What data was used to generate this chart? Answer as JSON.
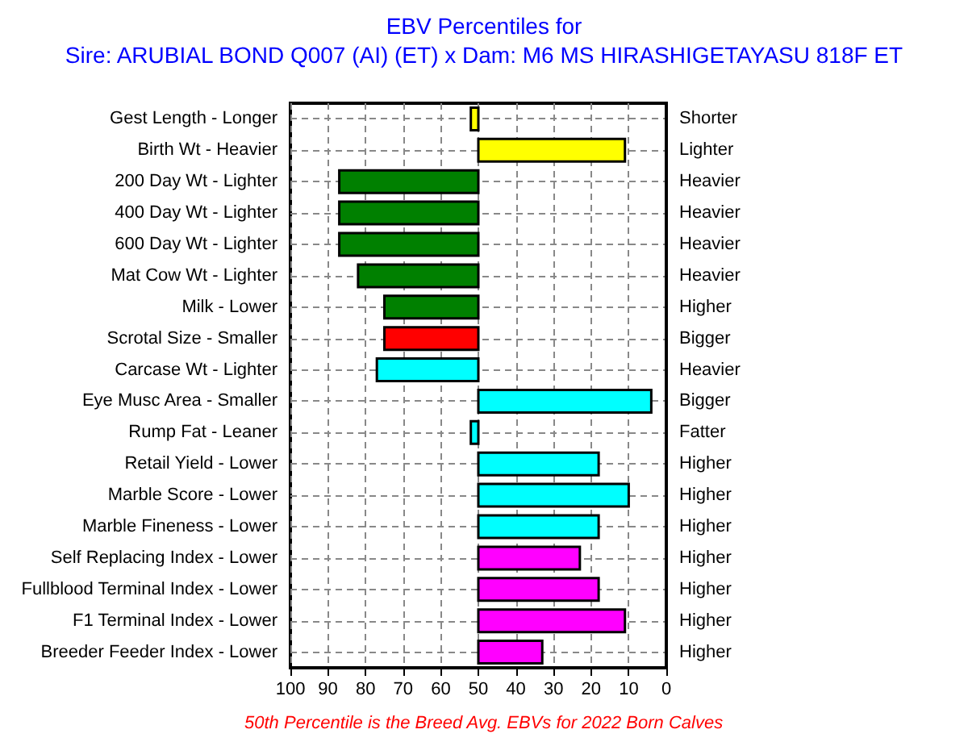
{
  "chart_data": {
    "type": "bar",
    "orientation": "horizontal",
    "title": "EBV Percentiles for",
    "subtitle": "Sire: ARUBIAL BOND Q007 (AI) (ET) x Dam: M6 MS HIRASHIGETAYASU 818F ET",
    "categories": [
      "Gest Length - Longer",
      "Birth Wt - Heavier",
      "200 Day Wt - Lighter",
      "400 Day Wt - Lighter",
      "600 Day Wt - Lighter",
      "Mat Cow Wt - Lighter",
      "Milk - Lower",
      "Scrotal Size - Smaller",
      "Carcase Wt - Lighter",
      "Eye Musc Area - Smaller",
      "Rump Fat - Leaner",
      "Retail Yield - Lower",
      "Marble Score - Lower",
      "Marble Fineness - Lower",
      "Self Replacing Index - Lower",
      "Fullblood Terminal Index - Lower",
      "F1 Terminal Index - Lower",
      "Breeder Feeder Index - Lower"
    ],
    "y2_categories": [
      "Shorter",
      "Lighter",
      "Heavier",
      "Heavier",
      "Heavier",
      "Heavier",
      "Higher",
      "Bigger",
      "Heavier",
      "Bigger",
      "Fatter",
      "Higher",
      "Higher",
      "Higher",
      "Higher",
      "Higher",
      "Higher",
      "Higher"
    ],
    "base": [
      50,
      50,
      50,
      50,
      50,
      50,
      50,
      50,
      50,
      50,
      50,
      50,
      50,
      50,
      50,
      50,
      50,
      50
    ],
    "values": [
      2,
      -39,
      37,
      37,
      37,
      32,
      25,
      25,
      27,
      -46,
      2,
      -32,
      -40,
      -32,
      -27,
      -32,
      -39,
      -17
    ],
    "colors": [
      "#ffff00",
      "#ffff00",
      "#008000",
      "#008000",
      "#008000",
      "#008000",
      "#008000",
      "#ff0000",
      "#00ffff",
      "#00ffff",
      "#00ffff",
      "#00ffff",
      "#00ffff",
      "#00ffff",
      "#ff00ff",
      "#ff00ff",
      "#ff00ff",
      "#ff00ff"
    ],
    "xlim": [
      100,
      0
    ],
    "xticks": [
      100,
      90,
      80,
      70,
      60,
      50,
      40,
      30,
      20,
      10,
      0
    ],
    "grid": true,
    "annotations": [
      "50th Percentile is the Breed Avg. EBVs for 2022 Born Calves"
    ]
  }
}
